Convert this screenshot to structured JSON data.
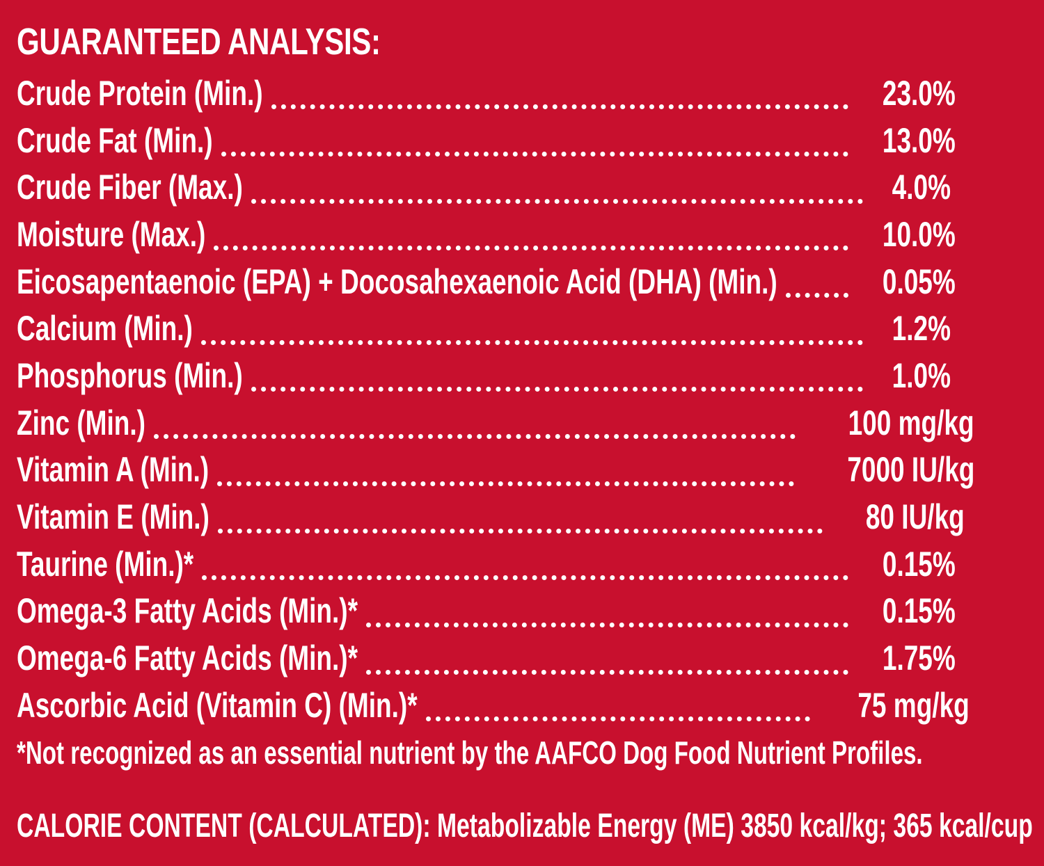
{
  "panel": {
    "background_color": "#c8102e",
    "text_color": "#ffffff",
    "title": "GUARANTEED ANALYSIS:",
    "rows": [
      {
        "label": "Crude Protein (Min.)",
        "value": "23.0%"
      },
      {
        "label": "Crude Fat (Min.)",
        "value": "13.0%"
      },
      {
        "label": "Crude Fiber (Max.)",
        "value": "4.0%"
      },
      {
        "label": "Moisture (Max.)",
        "value": "10.0%"
      },
      {
        "label": "Eicosapentaenoic (EPA) + Docosahexaenoic Acid (DHA) (Min.)",
        "value": "0.05%"
      },
      {
        "label": "Calcium (Min.)",
        "value": "1.2%"
      },
      {
        "label": "Phosphorus (Min.)",
        "value": "1.0%"
      },
      {
        "label": "Zinc (Min.)",
        "value": "100 mg/kg"
      },
      {
        "label": "Vitamin A (Min.)",
        "value": "7000 IU/kg"
      },
      {
        "label": "Vitamin E (Min.)",
        "value": "80 IU/kg"
      },
      {
        "label": "Taurine (Min.)*",
        "value": "0.15%"
      },
      {
        "label": "Omega-3 Fatty Acids (Min.)*",
        "value": "0.15%"
      },
      {
        "label": "Omega-6 Fatty Acids (Min.)*",
        "value": "1.75%"
      },
      {
        "label": "Ascorbic Acid (Vitamin C) (Min.)*",
        "value": "75 mg/kg"
      }
    ],
    "footnote": "*Not recognized as an essential nutrient by the AAFCO Dog Food Nutrient Profiles.",
    "calorie_content": "CALORIE CONTENT (CALCULATED): Metabolizable Energy (ME) 3850 kcal/kg;  365 kcal/cup"
  }
}
